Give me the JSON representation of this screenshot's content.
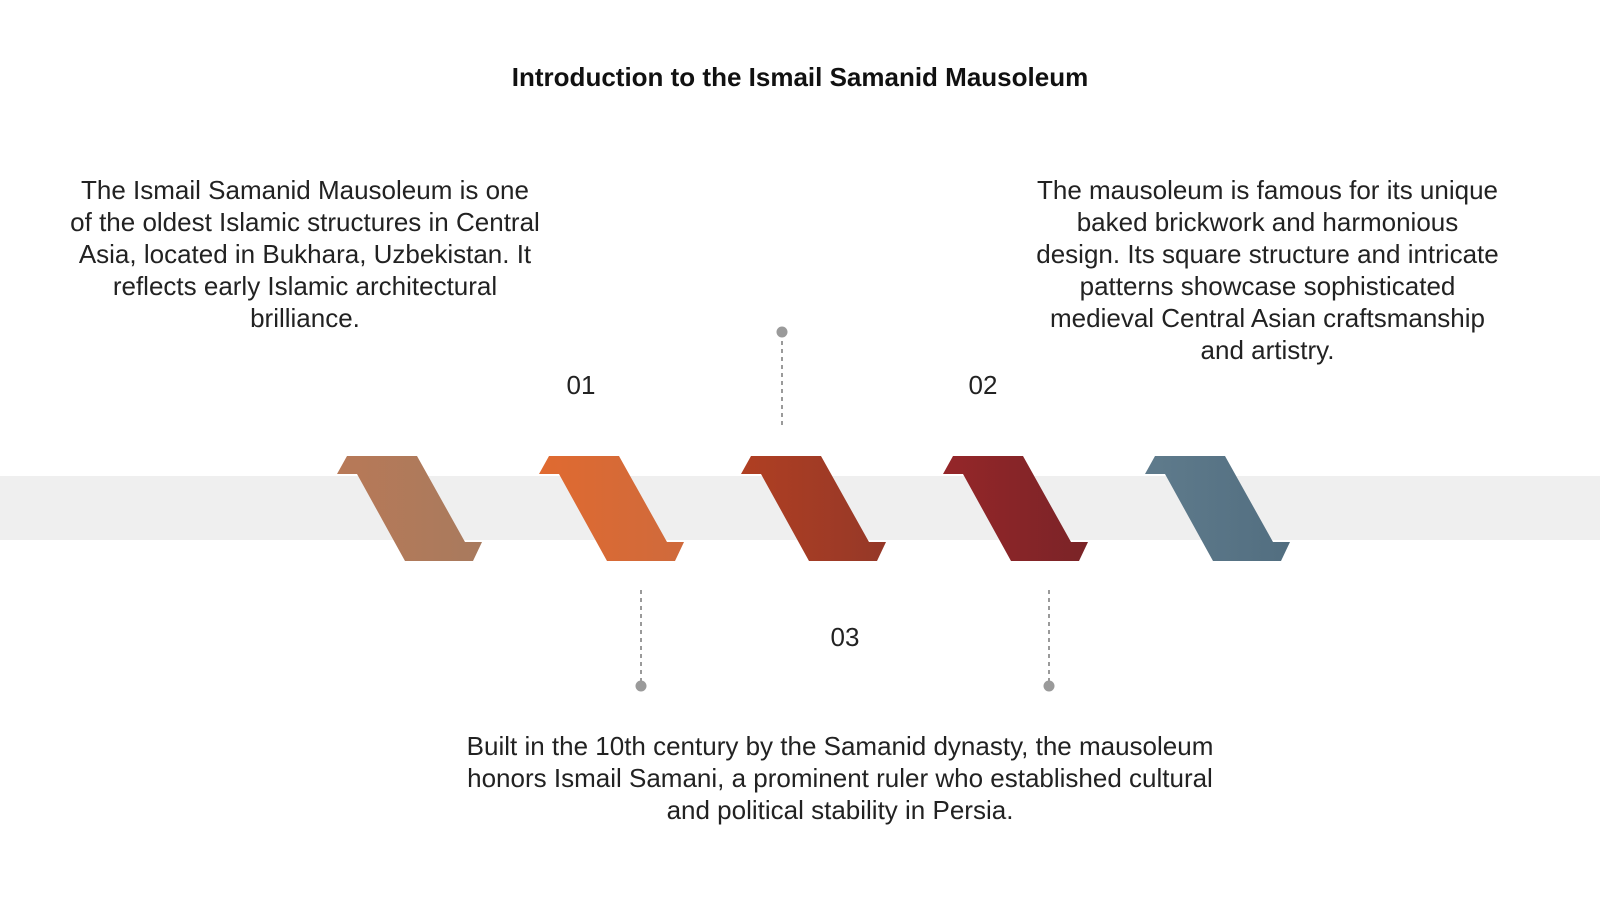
{
  "title": "Introduction to the Ismail Samanid Mausoleum",
  "steps": [
    {
      "number": "01",
      "text": "The Ismail Samanid Mausoleum is one of the oldest Islamic structures in Central Asia, located in Bukhara, Uzbekistan. It reflects early Islamic architectural brilliance."
    },
    {
      "number": "02",
      "text": "The mausoleum is famous for its unique baked brickwork and harmonious design. Its square structure and intricate patterns showcase sophisticated medieval Central Asian craftsmanship and artistry."
    },
    {
      "number": "03",
      "text": "Built in the 10th century by the Samanid dynasty, the mausoleum honors Ismail Samani, a prominent ruler who established cultural and political stability in Persia."
    }
  ],
  "colors": {
    "band": "#efefef",
    "connector": "#9a9a9a",
    "ribbon_1": "#b67a57",
    "ribbon_2": "#d96a33",
    "ribbon_3": "#a43c24",
    "ribbon_4": "#8a2528",
    "ribbon_5": "#587586"
  }
}
